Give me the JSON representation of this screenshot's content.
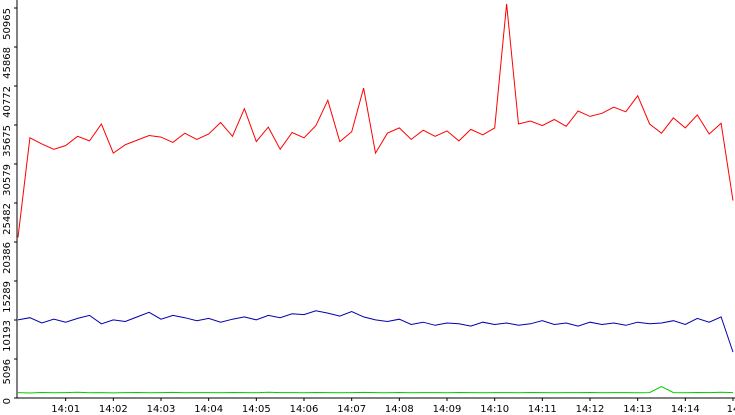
{
  "chart_data": {
    "type": "line",
    "x": [
      0,
      0.25,
      0.5,
      0.75,
      1,
      1.25,
      1.5,
      1.75,
      2,
      2.25,
      2.5,
      2.75,
      3,
      3.25,
      3.5,
      3.75,
      4,
      4.25,
      4.5,
      4.75,
      5,
      5.25,
      5.5,
      5.75,
      6,
      6.25,
      6.5,
      6.75,
      7,
      7.25,
      7.5,
      7.75,
      8,
      8.25,
      8.5,
      8.75,
      9,
      9.25,
      9.5,
      9.75,
      10,
      10.25,
      10.5,
      10.75,
      11,
      11.25,
      11.5,
      11.75,
      12,
      12.25,
      12.5,
      12.75,
      13,
      13.25,
      13.5,
      13.75,
      14,
      14.25,
      14.5,
      14.75,
      15
    ],
    "series": [
      {
        "color": "#ff0000",
        "values": [
          21000,
          34000,
          33200,
          32500,
          33000,
          34200,
          33600,
          35800,
          32000,
          33100,
          33700,
          34300,
          34100,
          33400,
          34600,
          33800,
          34500,
          36000,
          34200,
          37800,
          33500,
          35400,
          32500,
          34700,
          34000,
          35600,
          38900,
          33500,
          34800,
          40500,
          32000,
          34600,
          35300,
          33800,
          35000,
          34200,
          34900,
          33600,
          35100,
          34400,
          35300,
          51500,
          35800,
          36200,
          35600,
          36400,
          35500,
          37500,
          36800,
          37200,
          38000,
          37400,
          39500,
          35800,
          34600,
          36600,
          35300,
          37000,
          34500,
          35900,
          25800
        ]
      },
      {
        "color": "#0000b0",
        "values": [
          10200,
          10500,
          9800,
          10300,
          9900,
          10400,
          10800,
          9700,
          10200,
          10000,
          10600,
          11200,
          10300,
          10800,
          10500,
          10100,
          10400,
          9900,
          10300,
          10600,
          10200,
          10800,
          10500,
          11000,
          10900,
          11400,
          11100,
          10700,
          11300,
          10600,
          10200,
          10000,
          10300,
          9600,
          9900,
          9500,
          9800,
          9700,
          9400,
          9900,
          9600,
          9800,
          9500,
          9700,
          10100,
          9600,
          9800,
          9400,
          9900,
          9600,
          9800,
          9500,
          9900,
          9700,
          9800,
          10100,
          9600,
          10400,
          9900,
          10600,
          6000
        ]
      },
      {
        "color": "#00cc00",
        "values": [
          700,
          650,
          720,
          680,
          700,
          740,
          690,
          710,
          660,
          700,
          720,
          680,
          700,
          730,
          690,
          710,
          700,
          680,
          720,
          700,
          690,
          740,
          710,
          700,
          680,
          720,
          700,
          690,
          710,
          730,
          700,
          680,
          720,
          690,
          700,
          710,
          690,
          720,
          700,
          680,
          710,
          700,
          690,
          720,
          700,
          680,
          710,
          700,
          720,
          690,
          700,
          710,
          680,
          700,
          1500,
          700,
          690,
          720,
          700,
          760,
          700
        ]
      }
    ],
    "xlim": [
      0,
      15.2
    ],
    "xticks": [
      {
        "value": 1,
        "label": "14:01"
      },
      {
        "value": 2,
        "label": "14:02"
      },
      {
        "value": 3,
        "label": "14:03"
      },
      {
        "value": 4,
        "label": "14:04"
      },
      {
        "value": 5,
        "label": "14:05"
      },
      {
        "value": 6,
        "label": "14:06"
      },
      {
        "value": 7,
        "label": "14:07"
      },
      {
        "value": 8,
        "label": "14:08"
      },
      {
        "value": 9,
        "label": "14:09"
      },
      {
        "value": 10,
        "label": "14:10"
      },
      {
        "value": 11,
        "label": "14:11"
      },
      {
        "value": 12,
        "label": "14:12"
      },
      {
        "value": 13,
        "label": "14:13"
      },
      {
        "value": 14,
        "label": "14:14"
      },
      {
        "value": 15,
        "label": "14"
      }
    ],
    "ylim": [
      0,
      50965
    ],
    "yticks": [
      0,
      5096,
      10193,
      15289,
      20386,
      25482,
      30579,
      35675,
      40772,
      45868,
      50965
    ]
  }
}
